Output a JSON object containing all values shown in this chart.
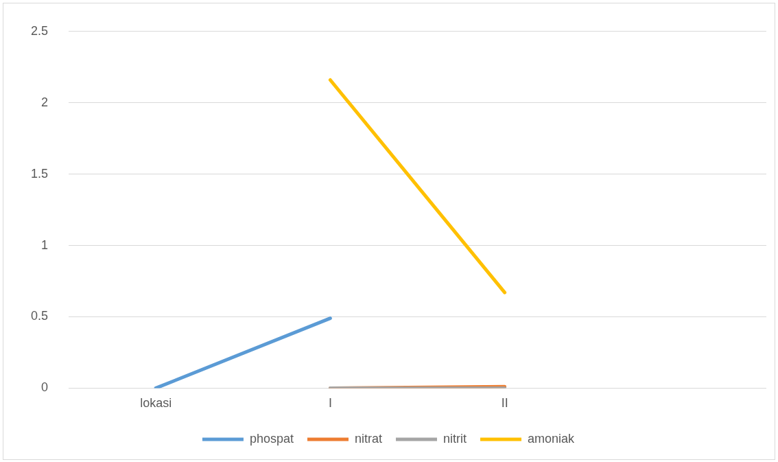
{
  "chart_data": {
    "type": "line",
    "categories": [
      "lokasi",
      "I",
      "II",
      null
    ],
    "series": [
      {
        "name": "phospat",
        "color": "#5b9bd5",
        "values": [
          0,
          0.49,
          null,
          null
        ]
      },
      {
        "name": "nitrat",
        "color": "#ed7d31",
        "values": [
          null,
          0,
          0.01,
          null
        ]
      },
      {
        "name": "nitrit",
        "color": "#a5a5a5",
        "values": [
          null,
          0,
          0,
          null
        ]
      },
      {
        "name": "amoniak",
        "color": "#ffc000",
        "values": [
          null,
          2.16,
          0.67,
          null
        ]
      }
    ],
    "ylim": [
      0,
      2.5
    ],
    "yticks": [
      0,
      0.5,
      1,
      1.5,
      2,
      2.5
    ],
    "grid": "y",
    "legend": "bottom",
    "marker": "none",
    "line_style": "solid"
  }
}
